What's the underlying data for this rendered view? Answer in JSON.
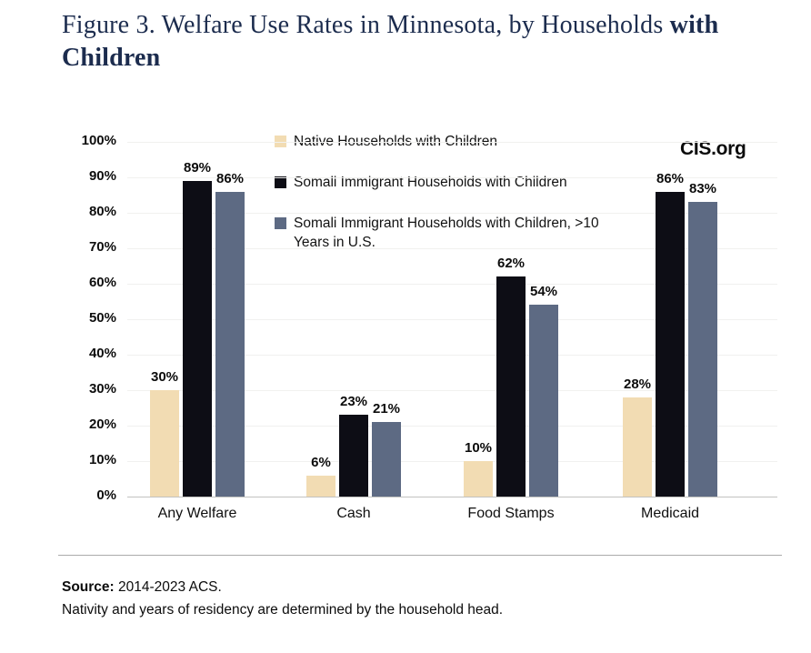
{
  "title": {
    "prefix": "Figure 3. Welfare Use Rates in Minnesota, by Households ",
    "bold_line1": "with",
    "bold_line2": "Children"
  },
  "watermark": "CIS.org",
  "colors": {
    "title-color": "#1c2c4e",
    "native-series": "#f2dcb3",
    "somali-series": "#0d0d15",
    "somali-10yr-series": "#5d6a83"
  },
  "chart_data": {
    "type": "bar",
    "title": "Figure 3. Welfare Use Rates in Minnesota, by Households with Children",
    "categories": [
      "Any Welfare",
      "Cash",
      "Food Stamps",
      "Medicaid"
    ],
    "series": [
      {
        "name": "Native Households with Children",
        "color": "#f2dcb3",
        "values": [
          30,
          6,
          10,
          28
        ]
      },
      {
        "name": "Somali Immigrant Households with Children",
        "color": "#0d0d15",
        "values": [
          89,
          23,
          62,
          86
        ]
      },
      {
        "name": "Somali Immigrant Households with Children, >10 Years in U.S.",
        "color": "#5d6a83",
        "values": [
          86,
          21,
          54,
          83
        ]
      }
    ],
    "xlabel": "",
    "ylabel": "",
    "ylim": [
      0,
      100
    ],
    "yticks": [
      "100%",
      "90%",
      "80%",
      "70%",
      "60%",
      "50%",
      "40%",
      "30%",
      "20%",
      "10%",
      "0%"
    ],
    "value_label_suffix": "%",
    "legend_position": "top-center",
    "grid": "faint-horizontal"
  },
  "footer": {
    "source_label": "Source:",
    "source_text": " 2014-2023 ACS.",
    "note": "Nativity and years of residency are determined by the household head."
  }
}
